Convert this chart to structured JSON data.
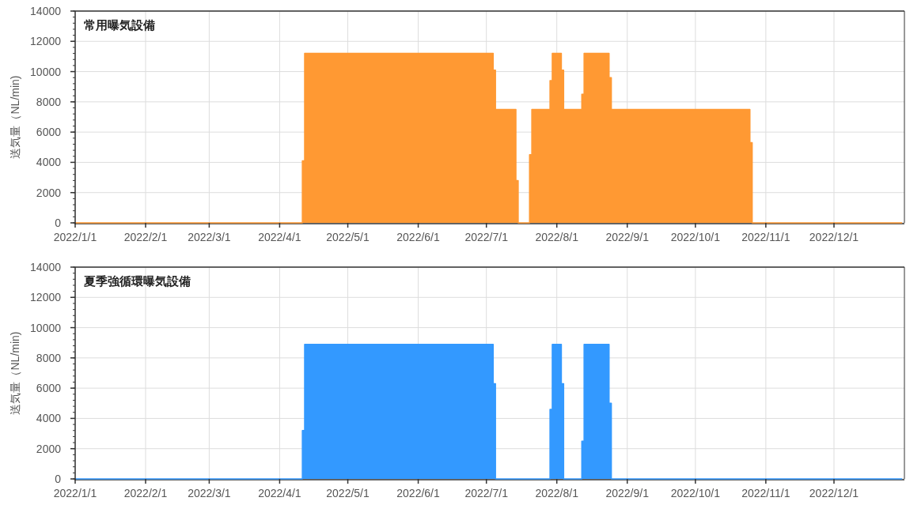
{
  "chart_data": [
    {
      "type": "area",
      "title": "常用曝気設備",
      "ylabel": "送気量（NL/min)",
      "x": [
        "2022-01-01",
        "2022-04-11",
        "2022-04-11",
        "2022-04-12",
        "2022-04-12",
        "2022-07-04",
        "2022-07-04",
        "2022-07-05",
        "2022-07-05",
        "2022-07-14",
        "2022-07-14",
        "2022-07-15",
        "2022-07-15",
        "2022-07-20",
        "2022-07-20",
        "2022-07-21",
        "2022-07-21",
        "2022-07-29",
        "2022-07-29",
        "2022-07-30",
        "2022-07-30",
        "2022-08-03",
        "2022-08-03",
        "2022-08-04",
        "2022-08-04",
        "2022-08-12",
        "2022-08-12",
        "2022-08-13",
        "2022-08-13",
        "2022-08-24",
        "2022-08-24",
        "2022-08-25",
        "2022-08-25",
        "2022-10-25",
        "2022-10-25",
        "2022-10-26",
        "2022-10-26",
        "2022-12-31"
      ],
      "series": [
        {
          "color": "#ff9933",
          "values": [
            0,
            0,
            4100,
            4100,
            11200,
            11200,
            10100,
            10100,
            7500,
            7500,
            2800,
            2800,
            0,
            0,
            4500,
            4500,
            7500,
            7500,
            9400,
            9400,
            11200,
            11200,
            10100,
            10100,
            7500,
            7500,
            8500,
            8500,
            11200,
            11200,
            9600,
            9600,
            7500,
            7500,
            5300,
            5300,
            0,
            0
          ]
        }
      ],
      "xlim": [
        "2022-01-01",
        "2023-01-01"
      ],
      "xticks": [
        {
          "value": "2022-01-01",
          "label": "2022/1/1"
        },
        {
          "value": "2022-02-01",
          "label": "2022/2/1"
        },
        {
          "value": "2022-03-01",
          "label": "2022/3/1"
        },
        {
          "value": "2022-04-01",
          "label": "2022/4/1"
        },
        {
          "value": "2022-05-01",
          "label": "2022/5/1"
        },
        {
          "value": "2022-06-01",
          "label": "2022/6/1"
        },
        {
          "value": "2022-07-01",
          "label": "2022/7/1"
        },
        {
          "value": "2022-08-01",
          "label": "2022/8/1"
        },
        {
          "value": "2022-09-01",
          "label": "2022/9/1"
        },
        {
          "value": "2022-10-01",
          "label": "2022/10/1"
        },
        {
          "value": "2022-11-01",
          "label": "2022/11/1"
        },
        {
          "value": "2022-12-01",
          "label": "2022/12/1"
        }
      ],
      "ylim": [
        0,
        14000
      ],
      "yticks": [
        0,
        2000,
        4000,
        6000,
        8000,
        10000,
        12000,
        14000
      ],
      "grid": true
    },
    {
      "type": "area",
      "title": "夏季強循環曝気設備",
      "ylabel": "送気量（NL/min)",
      "x": [
        "2022-01-01",
        "2022-04-11",
        "2022-04-11",
        "2022-04-12",
        "2022-04-12",
        "2022-07-04",
        "2022-07-04",
        "2022-07-05",
        "2022-07-05",
        "2022-07-29",
        "2022-07-29",
        "2022-07-30",
        "2022-07-30",
        "2022-08-03",
        "2022-08-03",
        "2022-08-04",
        "2022-08-04",
        "2022-08-12",
        "2022-08-12",
        "2022-08-13",
        "2022-08-13",
        "2022-08-24",
        "2022-08-24",
        "2022-08-25",
        "2022-08-25",
        "2022-12-31"
      ],
      "series": [
        {
          "color": "#3399ff",
          "values": [
            0,
            0,
            3200,
            3200,
            8900,
            8900,
            6300,
            6300,
            0,
            0,
            4600,
            4600,
            8900,
            8900,
            6300,
            6300,
            0,
            0,
            2500,
            2500,
            8900,
            8900,
            5000,
            5000,
            0,
            0
          ]
        }
      ],
      "xlim": [
        "2022-01-01",
        "2023-01-01"
      ],
      "xticks": [
        {
          "value": "2022-01-01",
          "label": "2022/1/1"
        },
        {
          "value": "2022-02-01",
          "label": "2022/2/1"
        },
        {
          "value": "2022-03-01",
          "label": "2022/3/1"
        },
        {
          "value": "2022-04-01",
          "label": "2022/4/1"
        },
        {
          "value": "2022-05-01",
          "label": "2022/5/1"
        },
        {
          "value": "2022-06-01",
          "label": "2022/6/1"
        },
        {
          "value": "2022-07-01",
          "label": "2022/7/1"
        },
        {
          "value": "2022-08-01",
          "label": "2022/8/1"
        },
        {
          "value": "2022-09-01",
          "label": "2022/9/1"
        },
        {
          "value": "2022-10-01",
          "label": "2022/10/1"
        },
        {
          "value": "2022-11-01",
          "label": "2022/11/1"
        },
        {
          "value": "2022-12-01",
          "label": "2022/12/1"
        }
      ],
      "ylim": [
        0,
        14000
      ],
      "yticks": [
        0,
        2000,
        4000,
        6000,
        8000,
        10000,
        12000,
        14000
      ],
      "grid": true
    }
  ]
}
